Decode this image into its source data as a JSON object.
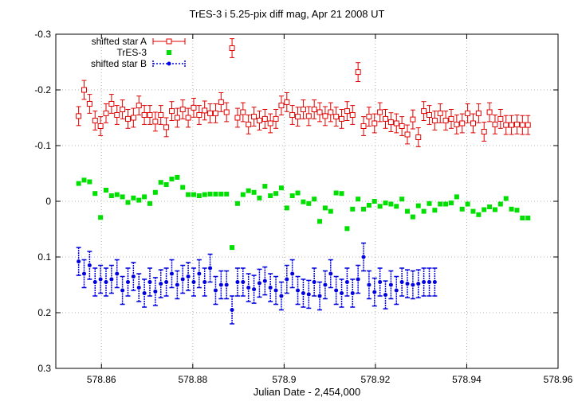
{
  "chart_data": {
    "type": "scatter",
    "title": "TrES-3 i 5.25-pix diff mag, Apr 21 2008 UT",
    "xlabel": "Julian Date - 2,454,000",
    "ylabel": "",
    "xlim": [
      578.85,
      578.96
    ],
    "ylim": [
      0.3,
      -0.3
    ],
    "y_inverted": true,
    "grid": true,
    "legend_position": "top-left",
    "x_ticks": [
      578.86,
      578.88,
      578.9,
      578.92,
      578.94,
      578.96
    ],
    "x_tick_labels": [
      "578.86",
      "578.88",
      "578.9",
      "578.92",
      "578.94",
      "578.96"
    ],
    "y_ticks": [
      -0.3,
      -0.2,
      -0.1,
      0,
      0.1,
      0.2,
      0.3
    ],
    "y_tick_labels": [
      "-0.3",
      "-0.2",
      "-0.1",
      "0",
      "0.1",
      "0.2",
      "0.3"
    ],
    "series": [
      {
        "name": "shifted star A",
        "color": "#e00000",
        "marker": "open-square-errorbars",
        "err": 0.017,
        "x": [
          578.855,
          578.8562,
          578.8574,
          578.8586,
          578.8598,
          578.861,
          578.8622,
          578.8634,
          578.8646,
          578.8658,
          578.867,
          578.8682,
          578.8694,
          578.8706,
          578.8718,
          578.873,
          578.8742,
          578.8754,
          578.8766,
          578.8778,
          578.879,
          578.8802,
          578.8814,
          578.8826,
          578.8838,
          578.885,
          578.8862,
          578.8874,
          578.8886,
          578.8898,
          578.891,
          578.8922,
          578.8934,
          578.8946,
          578.8958,
          578.897,
          578.8982,
          578.8994,
          578.9006,
          578.9018,
          578.903,
          578.9042,
          578.9054,
          578.9066,
          578.9078,
          578.909,
          578.9102,
          578.9114,
          578.9126,
          578.9138,
          578.915,
          578.9162,
          578.9174,
          578.9186,
          578.9198,
          578.921,
          578.9222,
          578.9234,
          578.9246,
          578.9258,
          578.927,
          578.9282,
          578.9294,
          578.9306,
          578.9318,
          578.933,
          578.9342,
          578.9354,
          578.9366,
          578.9378,
          578.939,
          578.9402,
          578.9414,
          578.9426,
          578.9438,
          578.945,
          578.9462,
          578.9474,
          578.9486,
          578.9498,
          578.951,
          578.9522,
          578.9534
        ],
        "y": [
          -0.153,
          -0.2,
          -0.175,
          -0.145,
          -0.135,
          -0.158,
          -0.175,
          -0.155,
          -0.165,
          -0.148,
          -0.15,
          -0.172,
          -0.155,
          -0.155,
          -0.143,
          -0.155,
          -0.133,
          -0.162,
          -0.15,
          -0.165,
          -0.15,
          -0.168,
          -0.155,
          -0.163,
          -0.158,
          -0.158,
          -0.178,
          -0.16,
          -0.275,
          -0.15,
          -0.16,
          -0.138,
          -0.152,
          -0.145,
          -0.148,
          -0.14,
          -0.148,
          -0.172,
          -0.178,
          -0.155,
          -0.152,
          -0.165,
          -0.153,
          -0.165,
          -0.16,
          -0.153,
          -0.16,
          -0.152,
          -0.148,
          -0.162,
          -0.155,
          -0.232,
          -0.135,
          -0.152,
          -0.14,
          -0.16,
          -0.148,
          -0.142,
          -0.14,
          -0.135,
          -0.12,
          -0.147,
          -0.115,
          -0.162,
          -0.155,
          -0.145,
          -0.158,
          -0.145,
          -0.148,
          -0.138,
          -0.14,
          -0.158,
          -0.14,
          -0.158,
          -0.125,
          -0.16,
          -0.138,
          -0.148,
          -0.137,
          -0.137,
          -0.138,
          -0.137,
          -0.137
        ]
      },
      {
        "name": "TrES-3",
        "color": "#00e000",
        "marker": "filled-square",
        "x": [
          578.855,
          578.8562,
          578.8574,
          578.8586,
          578.8598,
          578.861,
          578.8622,
          578.8634,
          578.8646,
          578.8658,
          578.867,
          578.8682,
          578.8694,
          578.8706,
          578.8718,
          578.873,
          578.8742,
          578.8754,
          578.8766,
          578.8778,
          578.879,
          578.8802,
          578.8814,
          578.8826,
          578.8838,
          578.885,
          578.8862,
          578.8874,
          578.8886,
          578.8898,
          578.891,
          578.8922,
          578.8934,
          578.8946,
          578.8958,
          578.897,
          578.8982,
          578.8994,
          578.9006,
          578.9018,
          578.903,
          578.9042,
          578.9054,
          578.9066,
          578.9078,
          578.909,
          578.9102,
          578.9114,
          578.9126,
          578.9138,
          578.915,
          578.9162,
          578.9174,
          578.9186,
          578.9198,
          578.921,
          578.9222,
          578.9234,
          578.9246,
          578.9258,
          578.927,
          578.9282,
          578.9294,
          578.9306,
          578.9318,
          578.933,
          578.9342,
          578.9354,
          578.9366,
          578.9378,
          578.939,
          578.9402,
          578.9414,
          578.9426,
          578.9438,
          578.945,
          578.9462,
          578.9474,
          578.9486,
          578.9498,
          578.951,
          578.9522,
          578.9534
        ],
        "y": [
          -0.032,
          -0.038,
          -0.035,
          -0.014,
          0.029,
          -0.02,
          -0.01,
          -0.012,
          -0.008,
          0.002,
          -0.006,
          -0.002,
          -0.008,
          0.004,
          -0.016,
          -0.034,
          -0.03,
          -0.04,
          -0.043,
          -0.025,
          -0.012,
          -0.012,
          -0.01,
          -0.012,
          -0.013,
          -0.013,
          -0.013,
          -0.013,
          0.083,
          0.004,
          -0.012,
          -0.019,
          -0.016,
          -0.006,
          -0.027,
          -0.01,
          -0.014,
          -0.024,
          0.012,
          -0.01,
          -0.015,
          0.001,
          0.004,
          -0.004,
          0.036,
          0.012,
          0.018,
          -0.015,
          -0.014,
          0.049,
          0.014,
          -0.004,
          0.014,
          0.007,
          0.0,
          0.009,
          0.003,
          0.005,
          0.009,
          -0.004,
          0.018,
          0.028,
          0.008,
          0.018,
          0.004,
          0.016,
          0.005,
          0.005,
          0.003,
          -0.008,
          0.014,
          0.005,
          0.018,
          0.024,
          0.015,
          0.01,
          0.015,
          0.005,
          -0.005,
          0.014,
          0.016,
          0.03,
          0.03
        ]
      },
      {
        "name": "shifted star B",
        "color": "#0000e0",
        "marker": "filled-circle-errorbars",
        "err": 0.025,
        "x": [
          578.855,
          578.8562,
          578.8574,
          578.8586,
          578.8598,
          578.861,
          578.8622,
          578.8634,
          578.8646,
          578.8658,
          578.867,
          578.8682,
          578.8694,
          578.8706,
          578.8718,
          578.873,
          578.8742,
          578.8754,
          578.8766,
          578.8778,
          578.879,
          578.8802,
          578.8814,
          578.8826,
          578.8838,
          578.885,
          578.8862,
          578.8874,
          578.8886,
          578.8898,
          578.891,
          578.8922,
          578.8934,
          578.8946,
          578.8958,
          578.897,
          578.8982,
          578.8994,
          578.9006,
          578.9018,
          578.903,
          578.9042,
          578.9054,
          578.9066,
          578.9078,
          578.909,
          578.9102,
          578.9114,
          578.9126,
          578.9138,
          578.915,
          578.9162,
          578.9174,
          578.9186,
          578.9198,
          578.921,
          578.9222,
          578.9234,
          578.9246,
          578.9258,
          578.927,
          578.9282,
          578.9294,
          578.9306,
          578.9318,
          578.933
        ],
        "y": [
          0.108,
          0.13,
          0.115,
          0.145,
          0.14,
          0.145,
          0.14,
          0.13,
          0.16,
          0.145,
          0.135,
          0.155,
          0.165,
          0.145,
          0.162,
          0.148,
          0.145,
          0.13,
          0.15,
          0.14,
          0.135,
          0.145,
          0.13,
          0.145,
          0.12,
          0.16,
          0.15,
          0.15,
          0.195,
          0.145,
          0.145,
          0.155,
          0.158,
          0.147,
          0.143,
          0.155,
          0.16,
          0.17,
          0.14,
          0.13,
          0.16,
          0.165,
          0.167,
          0.145,
          0.17,
          0.15,
          0.13,
          0.16,
          0.165,
          0.145,
          0.165,
          0.14,
          0.1,
          0.15,
          0.163,
          0.145,
          0.168,
          0.15,
          0.16,
          0.145,
          0.148,
          0.15,
          0.148,
          0.145,
          0.145,
          0.145
        ]
      }
    ]
  }
}
